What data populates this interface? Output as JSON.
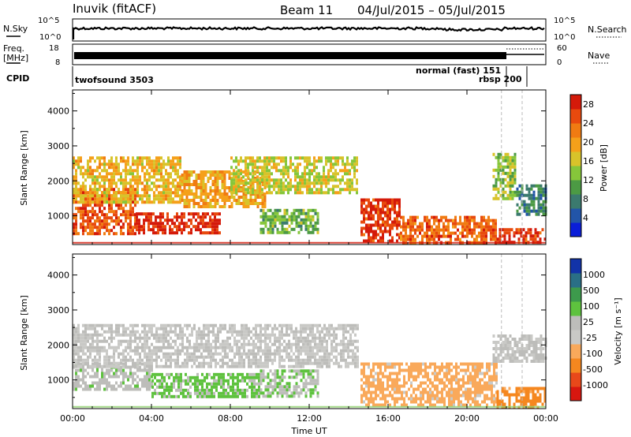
{
  "header": {
    "station": "Inuvik (fitACF)",
    "beam": "Beam 11",
    "date_range": "04/Jul/2015 – 05/Jul/2015"
  },
  "top_panels": {
    "nsky_label": "N.Sky",
    "nsky_ticks": [
      "10^5",
      "10^0"
    ],
    "nsearch_label": "N.Search",
    "nsearch_ticks": [
      "10^5",
      "10^0"
    ],
    "freq_label_1": "Freq.",
    "freq_label_2": "[MHz]",
    "freq_ticks": [
      "18",
      "8"
    ],
    "nave_label": "Nave",
    "nave_ticks": [
      "60",
      "0"
    ],
    "cpid_label": "CPID",
    "cpid_segments": [
      {
        "name": "twofsound 3503",
        "start_h": 0,
        "end_h": 21.75
      },
      {
        "name": "normal (fast) 151",
        "start_h": 21.75,
        "end_h": 22.8
      },
      {
        "name": "rbsp 200",
        "start_h": 21.75,
        "end_h": 22.8
      }
    ]
  },
  "chart_data": [
    {
      "type": "heatmap",
      "title": "",
      "xlabel": "",
      "ylabel": "Slant Range [km]",
      "x_tick_labels": [
        "00:00",
        "04:00",
        "08:00",
        "12:00",
        "16:00",
        "20:00",
        "00:00"
      ],
      "x_range_hours": [
        0,
        24
      ],
      "y_ticks": [
        1000,
        2000,
        3000,
        4000
      ],
      "y_range_km": [
        180,
        4600
      ],
      "colorbar": {
        "label": "Power [dB]",
        "ticks": [
          "4",
          "8",
          "12",
          "16",
          "20",
          "24",
          "28"
        ],
        "range": [
          0,
          30
        ],
        "colors": [
          "#0a1ed8",
          "#2255a8",
          "#3b7a6e",
          "#4c9a44",
          "#86c63a",
          "#d8c32a",
          "#f5a01a",
          "#f07b12",
          "#e84a0e",
          "#d41a0a"
        ]
      },
      "regions": [
        {
          "t0": 0.0,
          "t1": 3.2,
          "r0": 500,
          "r1": 1800,
          "v": 25
        },
        {
          "t0": 3.2,
          "t1": 7.5,
          "r0": 500,
          "r1": 1100,
          "v": 28
        },
        {
          "t0": 0.0,
          "t1": 5.5,
          "r0": 1400,
          "r1": 2700,
          "v": 18
        },
        {
          "t0": 5.5,
          "t1": 9.8,
          "r0": 1300,
          "r1": 2300,
          "v": 20
        },
        {
          "t0": 8.0,
          "t1": 14.4,
          "r0": 1700,
          "r1": 2700,
          "v": 16
        },
        {
          "t0": 9.5,
          "t1": 12.5,
          "r0": 500,
          "r1": 1200,
          "v": 12
        },
        {
          "t0": 14.6,
          "t1": 16.6,
          "r0": 300,
          "r1": 1500,
          "v": 27
        },
        {
          "t0": 16.6,
          "t1": 21.5,
          "r0": 250,
          "r1": 1000,
          "v": 24
        },
        {
          "t0": 21.5,
          "t1": 24.0,
          "r0": 250,
          "r1": 650,
          "v": 27
        },
        {
          "t0": 21.3,
          "t1": 22.5,
          "r0": 1500,
          "r1": 2800,
          "v": 14
        },
        {
          "t0": 22.5,
          "t1": 24.0,
          "r0": 1000,
          "r1": 1900,
          "v": 8
        }
      ],
      "mark_lines_hours": [
        21.75,
        22.8
      ]
    },
    {
      "type": "heatmap",
      "title": "",
      "xlabel": "Time UT",
      "ylabel": "Slant Range [km]",
      "x_tick_labels": [
        "00:00",
        "04:00",
        "08:00",
        "12:00",
        "16:00",
        "20:00",
        "00:00"
      ],
      "x_range_hours": [
        0,
        24
      ],
      "y_ticks": [
        1000,
        2000,
        3000,
        4000
      ],
      "y_range_km": [
        180,
        4600
      ],
      "colorbar": {
        "label": "Velocity [m s⁻¹]",
        "ticks": [
          "1000",
          "500",
          "100",
          "25",
          "-25",
          "-100",
          "-500",
          "-1000"
        ],
        "range": [
          -1200,
          1200
        ],
        "colors": [
          "#d8170f",
          "#e8481a",
          "#f5871f",
          "#f9a95b",
          "#c9c9c6",
          "#bdbdba",
          "#5ec23e",
          "#3d9a4c",
          "#2a6f86",
          "#1233a8"
        ]
      },
      "regions": [
        {
          "t0": 0.0,
          "t1": 4.0,
          "r0": 700,
          "r1": 1500,
          "v": 150
        },
        {
          "t0": 4.0,
          "t1": 9.5,
          "r0": 500,
          "r1": 1200,
          "v": 300
        },
        {
          "t0": 9.5,
          "t1": 12.5,
          "r0": 500,
          "r1": 1300,
          "v": 200
        },
        {
          "t0": 0.0,
          "t1": 14.5,
          "r0": 1400,
          "r1": 2600,
          "v": 0
        },
        {
          "t0": 14.6,
          "t1": 21.5,
          "r0": 250,
          "r1": 1500,
          "v": -350
        },
        {
          "t0": 21.5,
          "t1": 24.0,
          "r0": 250,
          "r1": 800,
          "v": -600
        },
        {
          "t0": 21.3,
          "t1": 24.0,
          "r0": 1500,
          "r1": 2300,
          "v": 10
        }
      ],
      "mark_lines_hours": [
        21.75,
        22.8
      ]
    }
  ]
}
